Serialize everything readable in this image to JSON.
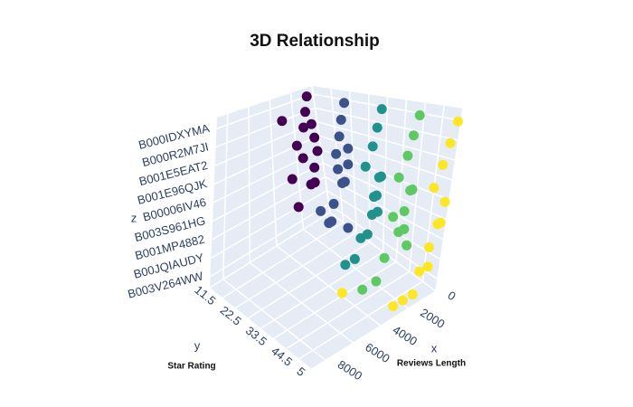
{
  "chart_data": {
    "type": "scatter3d",
    "title": "3D Relationship",
    "xlabel": "x",
    "ylabel": "y",
    "zlabel": "z",
    "annotations": [
      "Star Rating",
      "Reviews Length"
    ],
    "xlim": [
      0,
      9000
    ],
    "xticks": [
      0,
      2000,
      4000,
      6000,
      8000
    ],
    "ylim": [
      1,
      5
    ],
    "yticks": [
      1,
      1.5,
      2,
      2.5,
      3,
      3.5,
      4,
      4.5,
      5
    ],
    "zticks": [
      "B003V264WW",
      "B00JQIAUDY",
      "B001MP4882",
      "B003S961HG",
      "B00006IV46",
      "B001E96QJK",
      "B001E5EAT2",
      "B000R2M7JI",
      "B000IDXYMA"
    ],
    "colorscale": [
      "#440154",
      "#3b528b",
      "#21918c",
      "#5ec962",
      "#fde725"
    ],
    "grid": true,
    "x": [
      600,
      900,
      1200,
      400,
      1500,
      2500,
      800,
      1100,
      700,
      300,
      1900,
      2200,
      500,
      3000,
      500,
      800,
      1000,
      1300,
      400,
      700,
      1600,
      2000,
      600,
      900,
      1200,
      2600,
      350,
      1800,
      400,
      700,
      1000,
      1500,
      300,
      600,
      900,
      1200,
      2100,
      500,
      800,
      1700,
      2800,
      450,
      300,
      600,
      900,
      1400,
      500,
      800,
      1100,
      2000,
      2500,
      400,
      700,
      1600,
      3500,
      350,
      200,
      500,
      800,
      1200,
      300,
      600,
      1000,
      1500,
      2500,
      3200,
      7000,
      400,
      900,
      1800
    ],
    "y": [
      1,
      1,
      1,
      1,
      1,
      1,
      1,
      1,
      1,
      1,
      1,
      1,
      1,
      1,
      2,
      2,
      2,
      2,
      2,
      2,
      2,
      2,
      2,
      2,
      2,
      2,
      2,
      2,
      3,
      3,
      3,
      3,
      3,
      3,
      3,
      3,
      3,
      3,
      3,
      3,
      3,
      3,
      4,
      4,
      4,
      4,
      4,
      4,
      4,
      4,
      4,
      4,
      4,
      4,
      4,
      4,
      5,
      5,
      5,
      5,
      5,
      5,
      5,
      5,
      5,
      5,
      5,
      5,
      5,
      5
    ],
    "z": [
      "B000IDXYMA",
      "B000R2M7JI",
      "B001E5EAT2",
      "B001E96QJK",
      "B00006IV46",
      "B003S961HG",
      "B001MP4882",
      "B001MP4882",
      "B003S961HG",
      "B00006IV46",
      "B001E96QJK",
      "B00JQIAUDY",
      "B001E5EAT2",
      "B000R2M7JI",
      "B000IDXYMA",
      "B000R2M7JI",
      "B001E5EAT2",
      "B001E96QJK",
      "B00006IV46",
      "B003S961HG",
      "B001MP4882",
      "B00JQIAUDY",
      "B003V264WW",
      "B003S961HG",
      "B00006IV46",
      "B001MP4882",
      "B001E96QJK",
      "B00JQIAUDY",
      "B000IDXYMA",
      "B000R2M7JI",
      "B001E5EAT2",
      "B001E96QJK",
      "B00006IV46",
      "B003S961HG",
      "B001MP4882",
      "B00JQIAUDY",
      "B003V264WW",
      "B001MP4882",
      "B003S961HG",
      "B00JQIAUDY",
      "B003V264WW",
      "B00006IV46",
      "B000IDXYMA",
      "B000R2M7JI",
      "B001E5EAT2",
      "B001E96QJK",
      "B00006IV46",
      "B003S961HG",
      "B001MP4882",
      "B00JQIAUDY",
      "B003V264WW",
      "B00JQIAUDY",
      "B001MP4882",
      "B003S961HG",
      "B003V264WW",
      "B00006IV46",
      "B000IDXYMA",
      "B000R2M7JI",
      "B001E5EAT2",
      "B001E96QJK",
      "B00006IV46",
      "B003S961HG",
      "B001MP4882",
      "B00JQIAUDY",
      "B003V264WW",
      "B003V264WW",
      "B001MP4882",
      "B003S961HG",
      "B00JQIAUDY",
      "B003V264WW"
    ]
  }
}
